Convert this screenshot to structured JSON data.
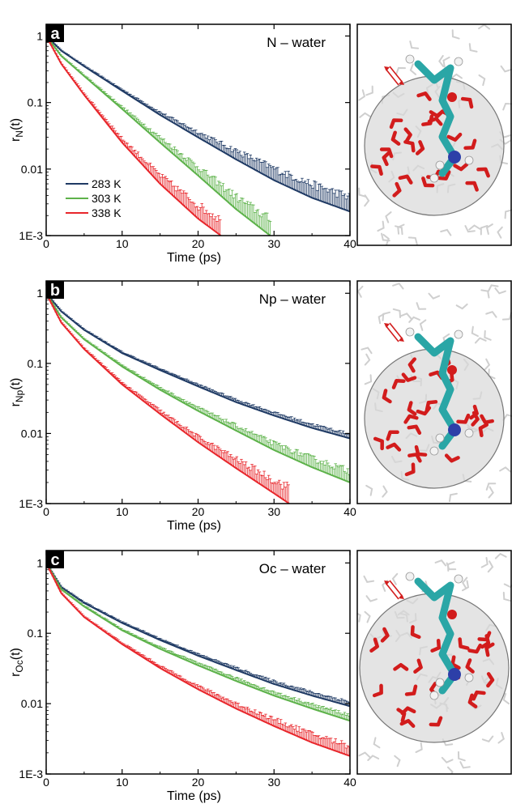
{
  "figure": {
    "colors": {
      "283 K": "#1f3a64",
      "303 K": "#5db24a",
      "338 K": "#e8262b"
    },
    "legend_placement": "lower-left",
    "right_images": "molecular snapshots: solute molecule (cyan, white, blue, red sticks) inside a translucent grey sphere surrounded by red water molecules; faint grey background waters; red double arrow"
  },
  "chart_data": [
    {
      "type": "line",
      "panel": "a",
      "title": "N – water",
      "xlabel": "Time (ps)",
      "ylabel_base": "r",
      "ylabel_sub": "N",
      "ylabel_suffix": "(t)",
      "y_scale": "log",
      "xlim": [
        0,
        40
      ],
      "ylim": [
        0.001,
        1.5
      ],
      "x_ticks": [
        "0",
        "10",
        "20",
        "30",
        "40"
      ],
      "y_ticks": [
        "1E-3",
        "0.01",
        "0.1",
        "1"
      ],
      "grid": false,
      "error_bars": true,
      "legend": [
        "283 K",
        "303 K",
        "338 K"
      ],
      "series": [
        {
          "name": "283 K",
          "x": [
            0,
            2,
            5,
            10,
            15,
            20,
            25,
            30,
            35,
            40
          ],
          "y": [
            1.0,
            0.6,
            0.35,
            0.15,
            0.065,
            0.03,
            0.014,
            0.0068,
            0.0037,
            0.0023
          ],
          "err_rel": [
            0.01,
            0.02,
            0.03,
            0.05,
            0.1,
            0.2,
            0.35,
            0.5,
            0.6,
            0.65
          ],
          "max_x": 40
        },
        {
          "name": "303 K",
          "x": [
            0,
            2,
            5,
            10,
            15,
            20,
            25,
            29.5
          ],
          "y": [
            1.0,
            0.5,
            0.25,
            0.08,
            0.025,
            0.008,
            0.0025,
            0.001
          ],
          "err_rel": [
            0.01,
            0.02,
            0.04,
            0.08,
            0.2,
            0.35,
            0.55,
            0.75
          ],
          "max_x": 29.5
        },
        {
          "name": "338 K",
          "x": [
            0,
            2,
            5,
            10,
            15,
            20,
            23
          ],
          "y": [
            1.0,
            0.38,
            0.13,
            0.025,
            0.006,
            0.0018,
            0.001
          ],
          "err_rel": [
            0.01,
            0.03,
            0.06,
            0.15,
            0.35,
            0.6,
            0.75
          ],
          "max_x": 23
        }
      ]
    },
    {
      "type": "line",
      "panel": "b",
      "title": "Np – water",
      "xlabel": "Time (ps)",
      "ylabel_base": "r",
      "ylabel_sub": "Np",
      "ylabel_suffix": "(t)",
      "y_scale": "log",
      "xlim": [
        0,
        40
      ],
      "ylim": [
        0.001,
        1.5
      ],
      "x_ticks": [
        "0",
        "10",
        "20",
        "30",
        "40"
      ],
      "y_ticks": [
        "1E-3",
        "0.01",
        "0.1",
        "1"
      ],
      "grid": false,
      "error_bars": true,
      "series": [
        {
          "name": "283 K",
          "x": [
            0,
            2,
            5,
            10,
            15,
            20,
            25,
            30,
            35,
            40
          ],
          "y": [
            1.0,
            0.55,
            0.3,
            0.14,
            0.08,
            0.047,
            0.028,
            0.018,
            0.012,
            0.0085
          ],
          "err_rel": [
            0.01,
            0.02,
            0.03,
            0.04,
            0.05,
            0.07,
            0.09,
            0.11,
            0.13,
            0.15
          ],
          "max_x": 40
        },
        {
          "name": "303 K",
          "x": [
            0,
            2,
            5,
            10,
            15,
            20,
            25,
            30,
            35,
            40
          ],
          "y": [
            1.0,
            0.45,
            0.22,
            0.09,
            0.042,
            0.021,
            0.011,
            0.0058,
            0.0033,
            0.002
          ],
          "err_rel": [
            0.01,
            0.02,
            0.03,
            0.05,
            0.08,
            0.12,
            0.18,
            0.25,
            0.35,
            0.45
          ],
          "max_x": 40
        },
        {
          "name": "338 K",
          "x": [
            0,
            2,
            5,
            10,
            15,
            20,
            25,
            30,
            32
          ],
          "y": [
            1.0,
            0.38,
            0.16,
            0.05,
            0.019,
            0.0075,
            0.0032,
            0.0014,
            0.001
          ],
          "err_rel": [
            0.01,
            0.02,
            0.04,
            0.07,
            0.12,
            0.2,
            0.35,
            0.55,
            0.7
          ],
          "max_x": 32
        }
      ]
    },
    {
      "type": "line",
      "panel": "c",
      "title": "Oc – water",
      "xlabel": "Time (ps)",
      "ylabel_base": "r",
      "ylabel_sub": "Oc",
      "ylabel_suffix": "(t)",
      "y_scale": "log",
      "xlim": [
        0,
        40
      ],
      "ylim": [
        0.001,
        1.5
      ],
      "x_ticks": [
        "0",
        "10",
        "20",
        "30",
        "40"
      ],
      "y_ticks": [
        "1E-3",
        "0.01",
        "0.1",
        "1"
      ],
      "grid": false,
      "error_bars": true,
      "series": [
        {
          "name": "283 K",
          "x": [
            0,
            2,
            5,
            10,
            15,
            20,
            25,
            30,
            35,
            40
          ],
          "y": [
            1.0,
            0.45,
            0.27,
            0.14,
            0.08,
            0.048,
            0.03,
            0.019,
            0.013,
            0.0092
          ],
          "err_rel": [
            0.01,
            0.02,
            0.03,
            0.04,
            0.05,
            0.06,
            0.08,
            0.1,
            0.12,
            0.15
          ],
          "max_x": 40
        },
        {
          "name": "303 K",
          "x": [
            0,
            2,
            5,
            10,
            15,
            20,
            25,
            30,
            35,
            40
          ],
          "y": [
            1.0,
            0.42,
            0.24,
            0.11,
            0.06,
            0.035,
            0.021,
            0.013,
            0.0085,
            0.0057
          ],
          "err_rel": [
            0.01,
            0.02,
            0.03,
            0.04,
            0.06,
            0.08,
            0.1,
            0.12,
            0.15,
            0.2
          ],
          "max_x": 40
        },
        {
          "name": "338 K",
          "x": [
            0,
            2,
            5,
            10,
            15,
            20,
            25,
            30,
            35,
            40
          ],
          "y": [
            1.0,
            0.37,
            0.17,
            0.07,
            0.032,
            0.016,
            0.0085,
            0.0048,
            0.0028,
            0.0018
          ],
          "err_rel": [
            0.01,
            0.02,
            0.03,
            0.05,
            0.08,
            0.12,
            0.18,
            0.25,
            0.32,
            0.4
          ],
          "max_x": 40
        }
      ]
    }
  ]
}
